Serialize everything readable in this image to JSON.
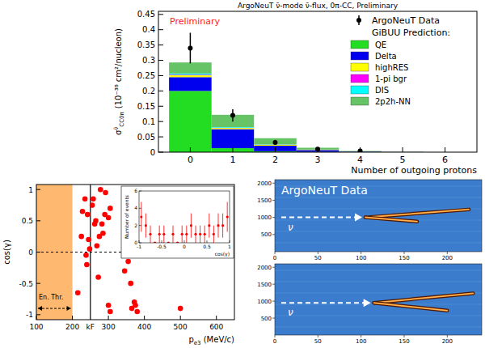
{
  "chart_data": [
    {
      "type": "bar",
      "stacked": true,
      "title": "ArgoNeuT ν̄-mode ν̄-flux, 0π-CC, Preliminary",
      "annotation": "Preliminary",
      "x_label": "Number of outgoing protons",
      "y_label": "σ",
      "y_label_sup": "ν̄",
      "y_label_sub": "CC0π",
      "y_label_unit": "(10⁻³⁸ cm²/nucleon)",
      "legend": "top-right",
      "legend_title": "GiBUU Prediction:",
      "bins": [
        -0.5,
        0.5,
        1.5,
        2.5,
        3.5,
        4.5,
        5.5,
        6.5
      ],
      "xlim": [
        -0.75,
        6.75
      ],
      "xticks": [
        0,
        1,
        2,
        3,
        4,
        5,
        6
      ],
      "ylim": [
        0,
        0.46
      ],
      "yticks": [
        0,
        0.05,
        0.1,
        0.15,
        0.2,
        0.25,
        0.3,
        0.35,
        0.4,
        0.45
      ],
      "series": [
        {
          "name": "ArgoNeuT Data",
          "type": "scatter",
          "color": "#000000",
          "marker": "circle",
          "x": [
            0,
            1,
            2,
            3,
            4
          ],
          "values": [
            0.34,
            0.12,
            0.032,
            0.01,
            0.004
          ],
          "errors": [
            0.05,
            0.02,
            0.008,
            0.003,
            0.002
          ]
        },
        {
          "name": "QE",
          "color": "#22dd22",
          "values": [
            0.2,
            0.013,
            0.003,
            0.001,
            0.0003,
            0.0001,
            0
          ]
        },
        {
          "name": "Delta",
          "color": "#0000ee",
          "values": [
            0.045,
            0.062,
            0.018,
            0.006,
            0.0015,
            0.0004,
            0
          ]
        },
        {
          "name": "highRES",
          "color": "#ffff00",
          "values": [
            0.006,
            0.004,
            0.003,
            0.001,
            0.0003,
            0.0001,
            0
          ]
        },
        {
          "name": "1-pi bgr",
          "color": "#ff00ff",
          "values": [
            0.002,
            0.001,
            0.0005,
            0.0002,
            0.0001,
            0,
            0
          ]
        },
        {
          "name": "DIS",
          "color": "#00ffff",
          "values": [
            0.004,
            0.002,
            0.001,
            0.0003,
            0.0001,
            0,
            0
          ]
        },
        {
          "name": "2p2h-NN",
          "color": "#66c466",
          "values": [
            0.036,
            0.04,
            0.02,
            0.006,
            0.0015,
            0.0004,
            0
          ]
        }
      ]
    },
    {
      "type": "scatter",
      "x_label": "p",
      "x_label_sub": "e3",
      "x_label_unit": " (MeV/c)",
      "y_label": "cos(γ)",
      "xlim": [
        100,
        650
      ],
      "xticks": [
        100,
        200,
        300,
        400,
        500,
        600
      ],
      "ylim": [
        -1.08,
        1.08
      ],
      "yticks": [
        -1,
        -0.5,
        0,
        0.5,
        1
      ],
      "shaded_range": {
        "label": "En. Thr.",
        "from": 100,
        "to": 200,
        "color": "#ffb870"
      },
      "vline": {
        "label": "kF",
        "x": 250
      },
      "hline": 0,
      "series": [
        {
          "color": "#ff0000",
          "marker": "circle",
          "x": [
            215,
            225,
            228,
            235,
            238,
            240,
            242,
            245,
            248,
            255,
            258,
            262,
            265,
            268,
            272,
            275,
            278,
            282,
            285,
            290,
            292,
            300,
            305,
            300,
            305,
            345,
            355,
            362,
            365,
            372,
            375,
            380,
            500
          ],
          "values": [
            -0.65,
            0.25,
            0.65,
            0.85,
            -0.05,
            -0.2,
            0.6,
            0.2,
            0.05,
            0.75,
            0.85,
            0.45,
            0.5,
            0.1,
            -0.4,
            0.25,
            1.0,
            0.45,
            0.3,
            0.6,
            0.95,
            0.55,
            0.7,
            -0.85,
            -0.95,
            -0.3,
            -0.15,
            -0.5,
            -0.9,
            -0.8,
            -0.85,
            -0.95,
            -0.9
          ]
        }
      ]
    },
    {
      "type": "scatter",
      "x_label": "cos(γ)",
      "y_label": "Number of events",
      "xlim": [
        -1,
        1
      ],
      "xticks": [
        -1,
        -0.5,
        0,
        0.5,
        1
      ],
      "ylim": [
        0,
        6
      ],
      "yticks": [
        0,
        2,
        4,
        6
      ],
      "series": [
        {
          "color": "#ff0000",
          "marker": "circle",
          "x": [
            -0.95,
            -0.85,
            -0.75,
            -0.65,
            -0.55,
            -0.45,
            -0.35,
            -0.25,
            -0.15,
            -0.05,
            0.05,
            0.15,
            0.25,
            0.35,
            0.45,
            0.55,
            0.65,
            0.75,
            0.85,
            0.95
          ],
          "values": [
            3,
            2,
            1,
            0,
            1,
            1,
            0,
            1,
            0,
            1,
            1,
            2,
            1,
            1,
            1,
            2,
            1,
            2,
            2,
            3
          ],
          "errors": [
            1.73,
            1.41,
            1,
            0,
            1,
            1,
            0,
            1,
            0,
            1,
            1,
            1.41,
            1,
            1,
            1,
            1.41,
            1,
            1.41,
            1.41,
            1.73
          ]
        }
      ]
    }
  ],
  "event_display": {
    "title": "ArgoNeuT Data",
    "arrow_label": "ν",
    "panels": [
      {
        "xlim": [
          0,
          240
        ],
        "ylim": [
          0,
          2100
        ],
        "xticks": [
          0,
          50,
          100,
          150,
          200
        ],
        "yticks": [
          500,
          1000,
          1500,
          2000
        ],
        "tracks": [
          {
            "x": [
              105,
              225
            ],
            "y": [
              1000,
              1230
            ]
          },
          {
            "x": [
              105,
              165
            ],
            "y": [
              1000,
              880
            ]
          }
        ]
      },
      {
        "xlim": [
          0,
          240
        ],
        "ylim": [
          0,
          2100
        ],
        "xticks": [
          0,
          50,
          100,
          150,
          200
        ],
        "yticks": [
          500,
          1000,
          1500,
          2000
        ],
        "tracks": [
          {
            "x": [
              115,
              230
            ],
            "y": [
              950,
              1230
            ]
          },
          {
            "x": [
              115,
              200
            ],
            "y": [
              950,
              720
            ]
          }
        ]
      }
    ]
  }
}
